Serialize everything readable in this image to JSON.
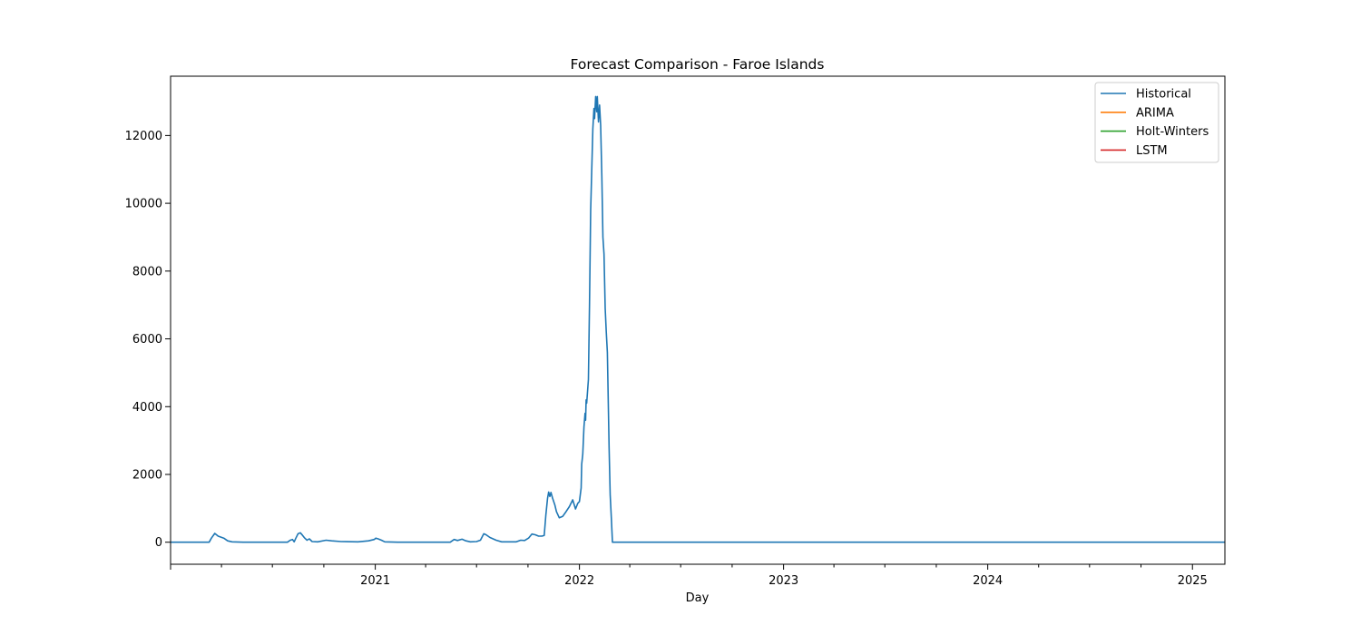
{
  "chart_data": {
    "type": "line",
    "title": "Forecast Comparison - Faroe Islands",
    "xlabel": "Day",
    "ylabel": "",
    "xlim": [
      "2020-01-01",
      "2025-02-28"
    ],
    "ylim": [
      -650,
      13750
    ],
    "grid": false,
    "legend_position": "top-right",
    "x_tick_labels": [
      "2021",
      "2022",
      "2023",
      "2024",
      "2025"
    ],
    "y_ticks": [
      0,
      2000,
      4000,
      6000,
      8000,
      10000,
      12000
    ],
    "y_tick_labels": [
      "0",
      "2000",
      "4000",
      "6000",
      "8000",
      "10000",
      "12000"
    ],
    "series": [
      {
        "name": "Historical",
        "color": "#1f77b4",
        "points": [
          [
            "2020-01-01",
            0
          ],
          [
            "2020-03-10",
            0
          ],
          [
            "2020-03-14",
            120
          ],
          [
            "2020-03-20",
            260
          ],
          [
            "2020-03-26",
            180
          ],
          [
            "2020-04-05",
            120
          ],
          [
            "2020-04-12",
            40
          ],
          [
            "2020-04-20",
            10
          ],
          [
            "2020-05-10",
            0
          ],
          [
            "2020-07-28",
            0
          ],
          [
            "2020-08-02",
            60
          ],
          [
            "2020-08-06",
            80
          ],
          [
            "2020-08-09",
            10
          ],
          [
            "2020-08-12",
            120
          ],
          [
            "2020-08-16",
            250
          ],
          [
            "2020-08-20",
            280
          ],
          [
            "2020-08-24",
            200
          ],
          [
            "2020-08-28",
            120
          ],
          [
            "2020-09-01",
            60
          ],
          [
            "2020-09-05",
            100
          ],
          [
            "2020-09-10",
            20
          ],
          [
            "2020-09-20",
            10
          ],
          [
            "2020-10-05",
            60
          ],
          [
            "2020-10-15",
            40
          ],
          [
            "2020-11-01",
            20
          ],
          [
            "2020-12-01",
            10
          ],
          [
            "2020-12-20",
            40
          ],
          [
            "2020-12-30",
            80
          ],
          [
            "2021-01-02",
            120
          ],
          [
            "2021-01-06",
            100
          ],
          [
            "2021-01-12",
            60
          ],
          [
            "2021-01-18",
            10
          ],
          [
            "2021-02-10",
            0
          ],
          [
            "2021-05-15",
            0
          ],
          [
            "2021-05-22",
            80
          ],
          [
            "2021-05-28",
            50
          ],
          [
            "2021-06-05",
            90
          ],
          [
            "2021-06-12",
            40
          ],
          [
            "2021-06-20",
            10
          ],
          [
            "2021-07-01",
            20
          ],
          [
            "2021-07-08",
            60
          ],
          [
            "2021-07-14",
            250
          ],
          [
            "2021-07-18",
            220
          ],
          [
            "2021-07-25",
            140
          ],
          [
            "2021-08-05",
            60
          ],
          [
            "2021-08-15",
            10
          ],
          [
            "2021-09-10",
            10
          ],
          [
            "2021-09-18",
            60
          ],
          [
            "2021-09-25",
            50
          ],
          [
            "2021-10-02",
            120
          ],
          [
            "2021-10-08",
            240
          ],
          [
            "2021-10-14",
            220
          ],
          [
            "2021-10-20",
            180
          ],
          [
            "2021-10-26",
            180
          ],
          [
            "2021-10-30",
            200
          ],
          [
            "2021-11-02",
            800
          ],
          [
            "2021-11-05",
            1300
          ],
          [
            "2021-11-07",
            1480
          ],
          [
            "2021-11-09",
            1350
          ],
          [
            "2021-11-11",
            1470
          ],
          [
            "2021-11-14",
            1300
          ],
          [
            "2021-11-18",
            1100
          ],
          [
            "2021-11-21",
            900
          ],
          [
            "2021-11-26",
            720
          ],
          [
            "2021-12-02",
            760
          ],
          [
            "2021-12-08",
            900
          ],
          [
            "2021-12-14",
            1050
          ],
          [
            "2021-12-20",
            1250
          ],
          [
            "2021-12-25",
            980
          ],
          [
            "2021-12-29",
            1150
          ],
          [
            "2022-01-01",
            1200
          ],
          [
            "2022-01-04",
            1600
          ],
          [
            "2022-01-05",
            2300
          ],
          [
            "2022-01-07",
            2600
          ],
          [
            "2022-01-09",
            3400
          ],
          [
            "2022-01-11",
            3800
          ],
          [
            "2022-01-12",
            3600
          ],
          [
            "2022-01-13",
            4200
          ],
          [
            "2022-01-14",
            4100
          ],
          [
            "2022-01-17",
            4800
          ],
          [
            "2022-01-19",
            7000
          ],
          [
            "2022-01-21",
            9800
          ],
          [
            "2022-01-23",
            11000
          ],
          [
            "2022-01-25",
            12200
          ],
          [
            "2022-01-27",
            12800
          ],
          [
            "2022-01-28",
            12500
          ],
          [
            "2022-01-30",
            13150
          ],
          [
            "2022-02-01",
            12700
          ],
          [
            "2022-02-02",
            13150
          ],
          [
            "2022-02-04",
            12400
          ],
          [
            "2022-02-06",
            12900
          ],
          [
            "2022-02-08",
            12300
          ],
          [
            "2022-02-10",
            10800
          ],
          [
            "2022-02-12",
            9000
          ],
          [
            "2022-02-14",
            8500
          ],
          [
            "2022-02-16",
            6900
          ],
          [
            "2022-02-18",
            6200
          ],
          [
            "2022-02-20",
            5600
          ],
          [
            "2022-02-23",
            2800
          ],
          [
            "2022-02-25",
            1400
          ],
          [
            "2022-02-27",
            700
          ],
          [
            "2022-03-01",
            0
          ],
          [
            "2025-02-28",
            0
          ]
        ]
      },
      {
        "name": "ARIMA",
        "color": "#ff7f0e",
        "points": []
      },
      {
        "name": "Holt-Winters",
        "color": "#2ca02c",
        "points": []
      },
      {
        "name": "LSTM",
        "color": "#d62728",
        "points": []
      }
    ]
  }
}
